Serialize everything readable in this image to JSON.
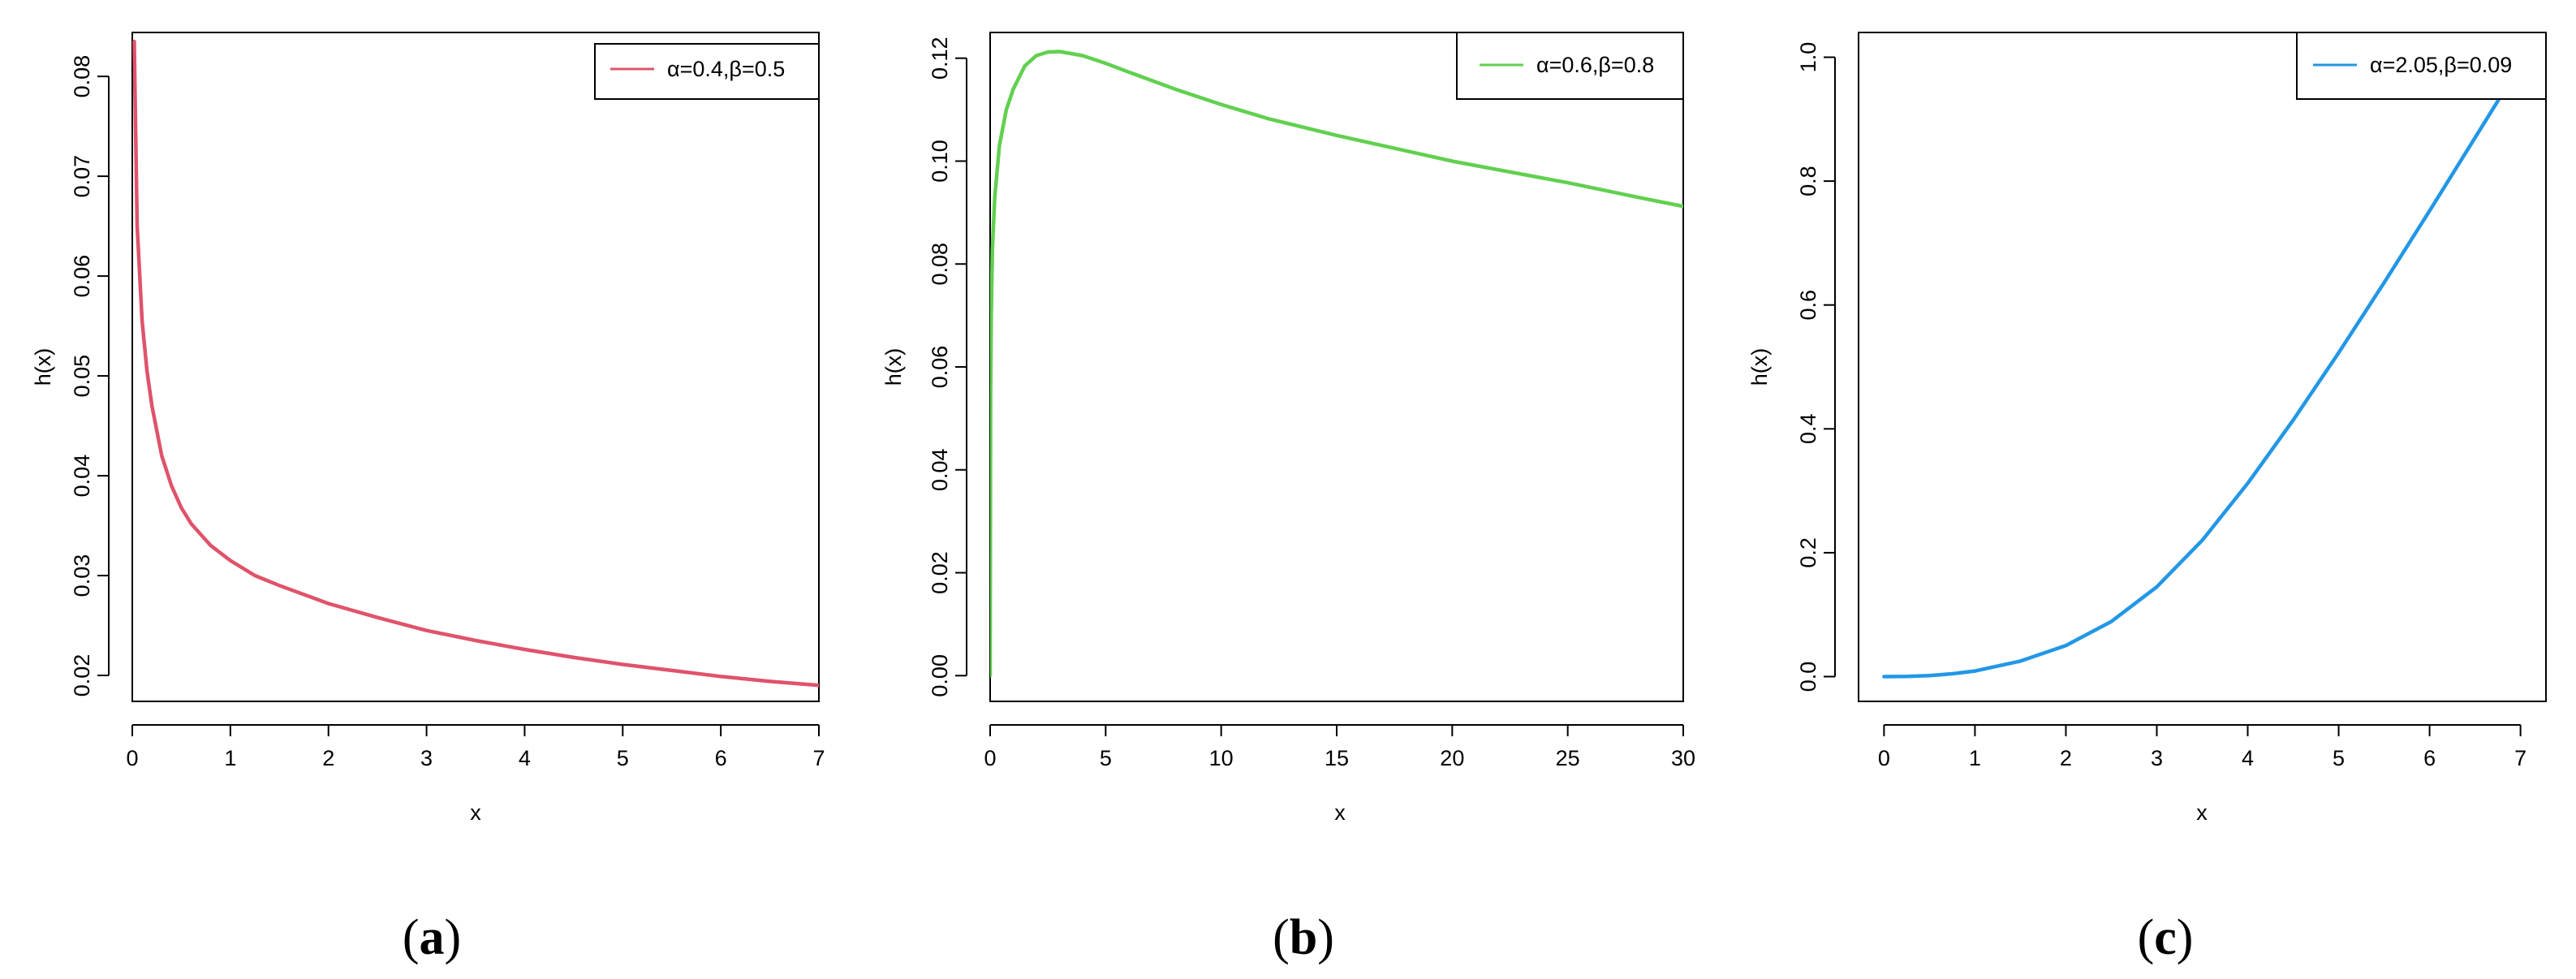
{
  "panels": [
    {
      "caption_open": "(",
      "caption_letter": "a",
      "caption_close": ")"
    },
    {
      "caption_open": "(",
      "caption_letter": "b",
      "caption_close": ")"
    },
    {
      "caption_open": "(",
      "caption_letter": "c",
      "caption_close": ")"
    }
  ],
  "chart_data": [
    {
      "type": "line",
      "title": "",
      "xlabel": "x",
      "ylabel": "h(x)",
      "xlim": [
        0,
        7
      ],
      "ylim": [
        0.0174,
        0.0844
      ],
      "x_ticks": [
        0,
        1,
        2,
        3,
        4,
        5,
        6,
        7
      ],
      "x_tick_labels": [
        "0",
        "1",
        "2",
        "3",
        "4",
        "5",
        "6",
        "7"
      ],
      "y_ticks": [
        0.02,
        0.03,
        0.04,
        0.05,
        0.06,
        0.07,
        0.08
      ],
      "y_tick_labels": [
        "0.02",
        "0.03",
        "0.04",
        "0.05",
        "0.06",
        "0.07",
        "0.08"
      ],
      "grid": false,
      "legend_position": "top-right",
      "series": [
        {
          "name": "α=0.4,β=0.5",
          "color": "#DF536B",
          "x": [
            0.02,
            0.05,
            0.1,
            0.15,
            0.2,
            0.3,
            0.4,
            0.5,
            0.6,
            0.8,
            1.0,
            1.25,
            1.5,
            2.0,
            2.5,
            3.0,
            3.5,
            4.0,
            4.5,
            5.0,
            5.5,
            6.0,
            6.5,
            7.0
          ],
          "y": [
            0.0835,
            0.065,
            0.0555,
            0.0505,
            0.047,
            0.042,
            0.039,
            0.0368,
            0.0352,
            0.033,
            0.0315,
            0.03,
            0.029,
            0.0272,
            0.0258,
            0.0245,
            0.0235,
            0.0226,
            0.0218,
            0.0211,
            0.0205,
            0.0199,
            0.0194,
            0.019
          ]
        }
      ]
    },
    {
      "type": "line",
      "title": "",
      "xlabel": "x",
      "ylabel": "h(x)",
      "xlim": [
        0,
        30
      ],
      "ylim": [
        -0.005,
        0.125
      ],
      "x_ticks": [
        0,
        5,
        10,
        15,
        20,
        25,
        30
      ],
      "x_tick_labels": [
        "0",
        "5",
        "10",
        "15",
        "20",
        "25",
        "30"
      ],
      "y_ticks": [
        0.0,
        0.02,
        0.04,
        0.06,
        0.08,
        0.1,
        0.12
      ],
      "y_tick_labels": [
        "0.00",
        "0.02",
        "0.04",
        "0.06",
        "0.08",
        "0.10",
        "0.12"
      ],
      "grid": false,
      "legend_position": "top-right",
      "series": [
        {
          "name": "α=0.6,β=0.8",
          "color": "#61D04F",
          "x": [
            0.0,
            0.02,
            0.05,
            0.1,
            0.2,
            0.4,
            0.7,
            1.0,
            1.5,
            2.0,
            2.5,
            3.0,
            4.0,
            5.0,
            6.0,
            8.0,
            10.0,
            12.0,
            15.0,
            18.0,
            20.0,
            22.0,
            25.0,
            28.0,
            30.0
          ],
          "y": [
            0.0,
            0.055,
            0.07,
            0.083,
            0.093,
            0.103,
            0.11,
            0.114,
            0.1185,
            0.1205,
            0.1212,
            0.1213,
            0.1205,
            0.119,
            0.1173,
            0.114,
            0.111,
            0.1083,
            0.105,
            0.102,
            0.1,
            0.0983,
            0.0958,
            0.093,
            0.0912
          ]
        }
      ]
    },
    {
      "type": "line",
      "title": "",
      "xlabel": "x",
      "ylabel": "h(x)",
      "xlim": [
        -0.28,
        7.28
      ],
      "ylim": [
        -0.04,
        1.04
      ],
      "x_ticks": [
        0,
        1,
        2,
        3,
        4,
        5,
        6,
        7
      ],
      "x_tick_labels": [
        "0",
        "1",
        "2",
        "3",
        "4",
        "5",
        "6",
        "7"
      ],
      "y_ticks": [
        0.0,
        0.2,
        0.4,
        0.6,
        0.8,
        1.0
      ],
      "y_tick_labels": [
        "0.0",
        "0.2",
        "0.4",
        "0.6",
        "0.8",
        "1.0"
      ],
      "grid": false,
      "legend_position": "top-right",
      "series": [
        {
          "name": "α=2.05,β=0.09",
          "color": "#2297E6",
          "x": [
            0.0,
            0.25,
            0.5,
            0.75,
            1.0,
            1.5,
            2.0,
            2.5,
            3.0,
            3.5,
            4.0,
            4.5,
            5.0,
            5.5,
            6.0,
            6.5,
            6.8,
            7.0
          ],
          "y": [
            0.0,
            0.0004,
            0.0017,
            0.0045,
            0.009,
            0.025,
            0.05,
            0.089,
            0.145,
            0.22,
            0.312,
            0.414,
            0.523,
            0.636,
            0.752,
            0.87,
            0.941,
            0.989
          ]
        }
      ]
    }
  ]
}
